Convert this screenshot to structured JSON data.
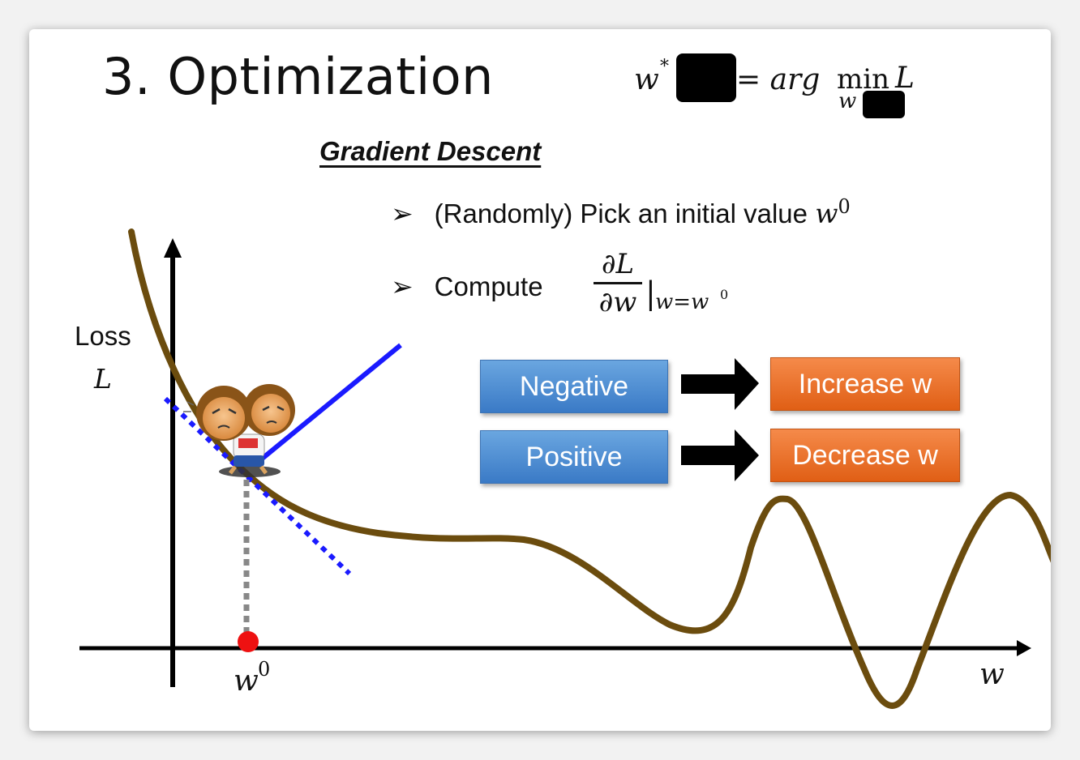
{
  "slide": {
    "title": "3. Optimization",
    "formula": {
      "lhs": "w",
      "star": "*",
      "eq": "= arg",
      "min": "min",
      "min_sub": "w",
      "rhs": "L"
    },
    "section_title": "Gradient Descent",
    "bullets": [
      {
        "text": "(Randomly) Pick an initial value ",
        "math": "w",
        "sup": "0"
      },
      {
        "text": "Compute ",
        "numerator": "∂L",
        "denominator": "∂w",
        "eval": "|",
        "eval_sub": "w=w",
        "eval_sup": "0"
      }
    ],
    "rules": [
      {
        "condition": "Negative",
        "action": "Increase w"
      },
      {
        "condition": "Positive",
        "action": "Decrease w"
      }
    ],
    "axis": {
      "y_label_line1": "Loss",
      "y_label_line2": "L",
      "x_label": "w",
      "start_point_label": "w",
      "start_point_sup": "0"
    },
    "colors": {
      "curve": "#6b4c0e",
      "tangent": "#1a1aff",
      "start_point": "#ee1111",
      "box_blue": "#4a8ad4",
      "box_orange": "#ea6e23"
    },
    "icons": {
      "character": "monkey-character-icon",
      "arrow": "right-arrow-icon"
    }
  }
}
